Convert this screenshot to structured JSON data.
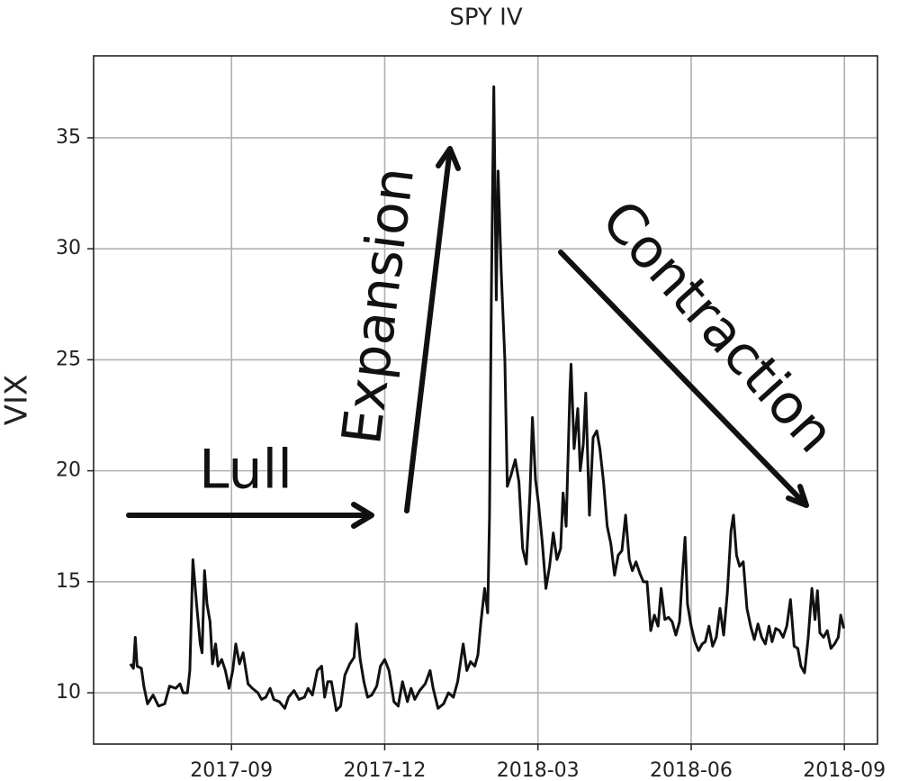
{
  "chart_data": {
    "type": "line",
    "title": "SPY IV",
    "y_label": "VIX",
    "annotations": [
      "Lull",
      "Expansion",
      "Contraction"
    ],
    "xlim": [
      2017.442,
      2018.721
    ],
    "ylim": [
      7.69,
      38.69
    ],
    "xticks": [
      {
        "value": 2017.667,
        "label": "2017-09"
      },
      {
        "value": 2017.917,
        "label": "2017-12"
      },
      {
        "value": 2018.167,
        "label": "2018-03"
      },
      {
        "value": 2018.417,
        "label": "2018-06"
      },
      {
        "value": 2018.667,
        "label": "2018-09"
      }
    ],
    "yticks": [
      10,
      15,
      20,
      25,
      30,
      35
    ],
    "grid": true,
    "series": [
      {
        "name": "VIX",
        "color": "#111111",
        "x": [
          2017.502,
          2017.507,
          2017.51,
          2017.513,
          2017.52,
          2017.524,
          2017.53,
          2017.539,
          2017.548,
          2017.558,
          2017.566,
          2017.576,
          2017.583,
          2017.588,
          2017.595,
          2017.599,
          2017.604,
          2017.61,
          2017.616,
          2017.619,
          2017.623,
          2017.627,
          2017.632,
          2017.636,
          2017.641,
          2017.645,
          2017.651,
          2017.657,
          2017.663,
          2017.669,
          2017.674,
          2017.68,
          2017.686,
          2017.694,
          2017.701,
          2017.71,
          2017.716,
          2017.723,
          2017.73,
          2017.736,
          2017.745,
          2017.754,
          2017.76,
          2017.769,
          2017.777,
          2017.786,
          2017.792,
          2017.799,
          2017.807,
          2017.814,
          2017.819,
          2017.824,
          2017.83,
          2017.838,
          2017.845,
          2017.852,
          2017.86,
          2017.867,
          2017.871,
          2017.877,
          2017.883,
          2017.889,
          2017.896,
          2017.904,
          2017.91,
          2017.917,
          2017.924,
          2017.932,
          2017.939,
          2017.946,
          2017.954,
          2017.96,
          2017.966,
          2017.974,
          2017.983,
          2017.991,
          2017.996,
          2018.004,
          2018.013,
          2018.021,
          2018.029,
          2018.036,
          2018.045,
          2018.051,
          2018.057,
          2018.064,
          2018.069,
          2018.074,
          2018.08,
          2018.085,
          2018.088,
          2018.091,
          2018.095,
          2018.099,
          2018.102,
          2018.107,
          2018.113,
          2018.117,
          2018.123,
          2018.13,
          2018.136,
          2018.142,
          2018.148,
          2018.154,
          2018.158,
          2018.163,
          2018.168,
          2018.174,
          2018.18,
          2018.186,
          2018.192,
          2018.198,
          2018.204,
          2018.208,
          2018.213,
          2018.219,
          2018.221,
          2018.226,
          2018.232,
          2018.236,
          2018.241,
          2018.245,
          2018.251,
          2018.257,
          2018.263,
          2018.268,
          2018.274,
          2018.28,
          2018.286,
          2018.292,
          2018.298,
          2018.304,
          2018.31,
          2018.316,
          2018.321,
          2018.327,
          2018.333,
          2018.339,
          2018.345,
          2018.351,
          2018.357,
          2018.363,
          2018.368,
          2018.374,
          2018.38,
          2018.386,
          2018.392,
          2018.398,
          2018.402,
          2018.407,
          2018.411,
          2018.417,
          2018.423,
          2018.429,
          2018.435,
          2018.44,
          2018.446,
          2018.452,
          2018.458,
          2018.464,
          2018.47,
          2018.476,
          2018.482,
          2018.486,
          2018.491,
          2018.496,
          2018.502,
          2018.508,
          2018.514,
          2018.52,
          2018.526,
          2018.532,
          2018.538,
          2018.544,
          2018.549,
          2018.555,
          2018.561,
          2018.567,
          2018.573,
          2018.579,
          2018.585,
          2018.591,
          2018.596,
          2018.602,
          2018.608,
          2018.614,
          2018.619,
          2018.623,
          2018.627,
          2018.633,
          2018.639,
          2018.645,
          2018.651,
          2018.657,
          2018.661,
          2018.666
        ],
        "values": [
          11.3,
          11.1,
          12.5,
          11.2,
          11.1,
          10.3,
          9.5,
          9.9,
          9.4,
          9.5,
          10.3,
          10.2,
          10.4,
          10.0,
          10.0,
          11.0,
          16.0,
          14.0,
          12.2,
          11.8,
          15.5,
          14.0,
          13.2,
          11.3,
          12.2,
          11.2,
          11.5,
          11.0,
          10.2,
          11.0,
          12.2,
          11.3,
          11.8,
          10.4,
          10.2,
          10.0,
          9.7,
          9.8,
          10.2,
          9.7,
          9.6,
          9.3,
          9.8,
          10.1,
          9.7,
          9.8,
          10.2,
          9.9,
          11.0,
          11.2,
          9.8,
          10.5,
          10.5,
          9.2,
          9.4,
          10.8,
          11.3,
          11.6,
          13.1,
          11.5,
          10.5,
          9.8,
          9.9,
          10.3,
          11.2,
          11.5,
          11.0,
          9.6,
          9.4,
          10.5,
          9.6,
          10.2,
          9.7,
          10.1,
          10.4,
          11.0,
          10.2,
          9.3,
          9.5,
          10.0,
          9.8,
          10.5,
          12.2,
          11.0,
          11.4,
          11.2,
          11.7,
          13.2,
          14.7,
          13.6,
          18.0,
          28.0,
          37.3,
          27.7,
          33.5,
          29.0,
          25.0,
          19.3,
          19.8,
          20.5,
          19.5,
          16.5,
          15.8,
          19.0,
          22.4,
          19.6,
          18.5,
          16.8,
          14.7,
          15.7,
          17.2,
          16.0,
          16.5,
          19.0,
          17.5,
          23.5,
          24.8,
          21.0,
          22.8,
          20.0,
          21.2,
          23.5,
          18.0,
          21.5,
          21.8,
          21.0,
          19.5,
          17.5,
          16.7,
          15.3,
          16.2,
          16.4,
          18.0,
          16.0,
          15.5,
          15.9,
          15.4,
          15.0,
          15.0,
          12.8,
          13.5,
          13.0,
          14.7,
          13.3,
          13.4,
          13.2,
          12.6,
          13.2,
          15.0,
          17.0,
          14.0,
          13.0,
          12.3,
          11.9,
          12.2,
          12.3,
          13.0,
          12.1,
          12.5,
          13.8,
          12.6,
          14.5,
          17.3,
          18.0,
          16.2,
          15.7,
          15.9,
          13.8,
          13.0,
          12.4,
          13.1,
          12.5,
          12.2,
          13.0,
          12.3,
          12.9,
          12.8,
          12.5,
          13.0,
          14.2,
          12.1,
          12.0,
          11.2,
          10.9,
          12.5,
          14.7,
          13.3,
          14.6,
          12.7,
          12.5,
          12.8,
          12.0,
          12.2,
          12.5,
          13.5,
          12.9
        ]
      }
    ]
  }
}
